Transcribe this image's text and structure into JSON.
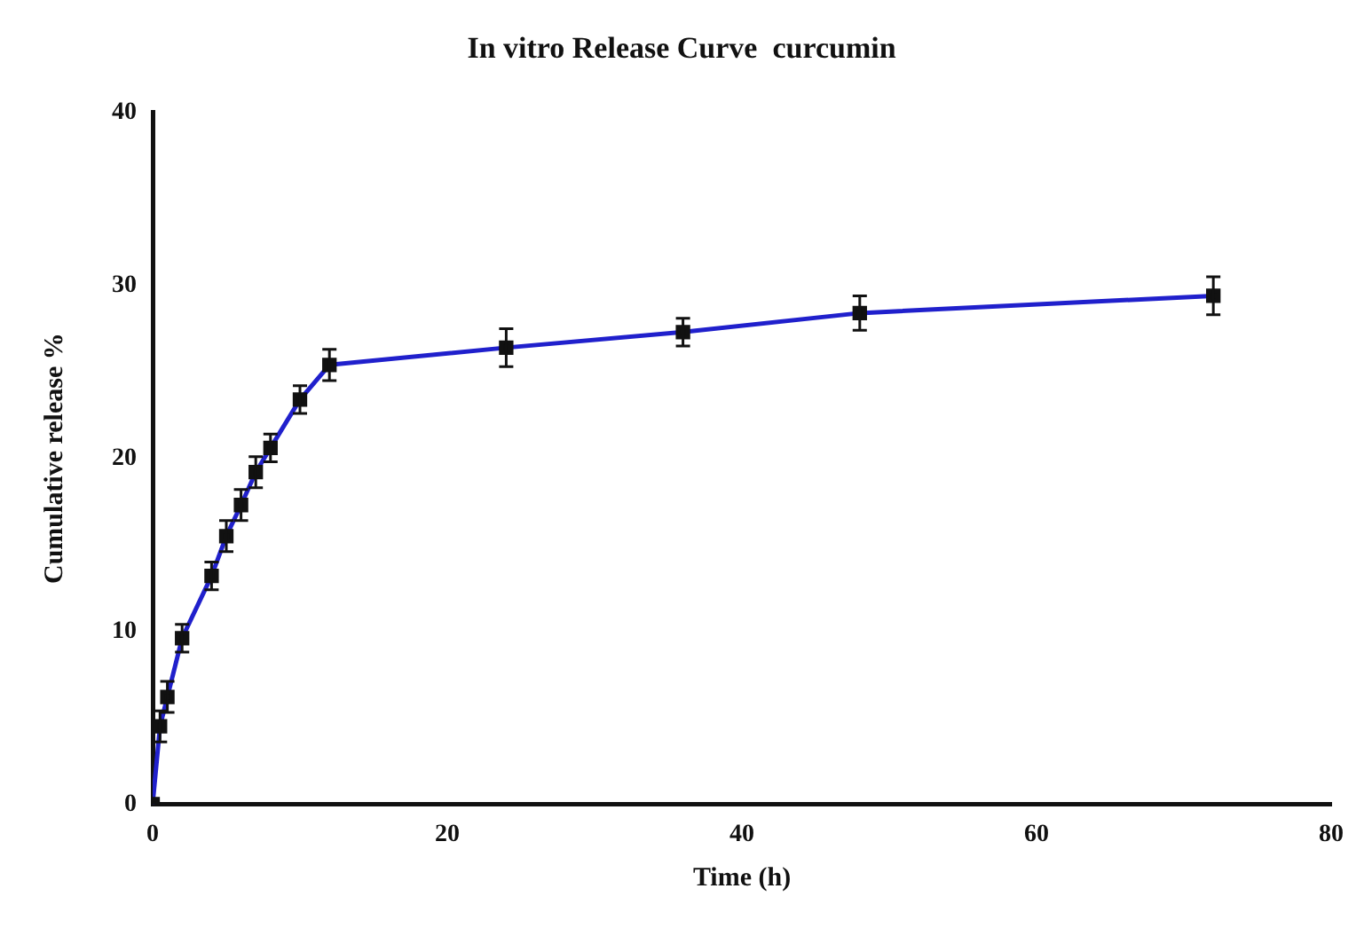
{
  "chart_data": {
    "type": "line",
    "title": "In vitro Release Curve  curcumin",
    "xlabel": "Time (h)",
    "ylabel": "Cumulative release %",
    "x": [
      0,
      0.5,
      1,
      2,
      4,
      5,
      6,
      7,
      8,
      10,
      12,
      24,
      36,
      48,
      72
    ],
    "series": [
      {
        "color": "#2020cc",
        "values": [
          0,
          4.5,
          6.2,
          9.6,
          13.2,
          15.5,
          17.3,
          19.2,
          20.6,
          23.4,
          25.4,
          26.4,
          27.3,
          28.4,
          29.4
        ],
        "errors": [
          null,
          0.9,
          0.9,
          0.8,
          0.8,
          0.9,
          0.9,
          0.9,
          0.8,
          0.8,
          0.9,
          1.1,
          0.8,
          1.0,
          1.1
        ]
      }
    ],
    "xlim": [
      0,
      80
    ],
    "xticks": [
      0,
      20,
      40,
      60,
      80
    ],
    "ylim": [
      0,
      40
    ],
    "yticks": [
      0,
      10,
      20,
      30,
      40
    ],
    "grid": false,
    "legend": false,
    "marker": "square",
    "line_style": "solid"
  }
}
